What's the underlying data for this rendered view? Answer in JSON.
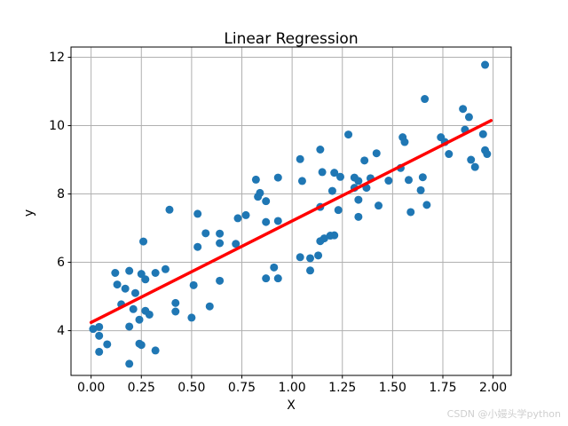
{
  "figure": {
    "title": "Linear Regression",
    "xlabel": "X",
    "ylabel": "y",
    "watermark": "CSDN @小嫚头学python"
  },
  "chart_data": {
    "type": "scatter",
    "title": "Linear Regression",
    "xlabel": "X",
    "ylabel": "y",
    "grid": true,
    "legend": "none",
    "xlim": [
      -0.1,
      2.09
    ],
    "ylim": [
      2.69,
      12.3
    ],
    "xticks": [
      0,
      0.25,
      0.5,
      0.75,
      1.0,
      1.25,
      1.5,
      1.75,
      2.0
    ],
    "xtick_labels": [
      "0.00",
      "0.25",
      "0.50",
      "0.75",
      "1.00",
      "1.25",
      "1.50",
      "1.75",
      "2.00"
    ],
    "yticks": [
      4,
      6,
      8,
      10,
      12
    ],
    "ytick_labels": [
      "4",
      "6",
      "8",
      "10",
      "12"
    ],
    "colors": {
      "scatter": "#1f77b4",
      "line": "#ff0000",
      "grid": "#b0b0b0",
      "spine": "#000000",
      "tick": "#000000",
      "watermark": "#cfcfcf"
    },
    "marker_radius": 4.5,
    "line_width": 3.5,
    "series": [
      {
        "name": "data-points",
        "type": "scatter",
        "color": "#1f77b4",
        "points": [
          [
            0.01,
            4.05
          ],
          [
            0.04,
            4.11
          ],
          [
            0.04,
            3.85
          ],
          [
            0.04,
            3.38
          ],
          [
            0.08,
            3.6
          ],
          [
            0.12,
            5.69
          ],
          [
            0.13,
            5.35
          ],
          [
            0.15,
            4.77
          ],
          [
            0.17,
            5.23
          ],
          [
            0.19,
            3.03
          ],
          [
            0.19,
            5.75
          ],
          [
            0.19,
            4.12
          ],
          [
            0.21,
            4.63
          ],
          [
            0.22,
            5.1
          ],
          [
            0.24,
            3.62
          ],
          [
            0.25,
            3.58
          ],
          [
            0.24,
            4.32
          ],
          [
            0.25,
            5.66
          ],
          [
            0.26,
            6.61
          ],
          [
            0.27,
            4.58
          ],
          [
            0.27,
            5.5
          ],
          [
            0.29,
            4.47
          ],
          [
            0.32,
            5.69
          ],
          [
            0.32,
            3.42
          ],
          [
            0.37,
            5.8
          ],
          [
            0.39,
            7.54
          ],
          [
            0.42,
            4.81
          ],
          [
            0.42,
            4.56
          ],
          [
            0.5,
            4.38
          ],
          [
            0.51,
            5.33
          ],
          [
            0.53,
            7.42
          ],
          [
            0.53,
            6.45
          ],
          [
            0.57,
            6.85
          ],
          [
            0.59,
            4.71
          ],
          [
            0.64,
            6.84
          ],
          [
            0.64,
            6.56
          ],
          [
            0.64,
            5.46
          ],
          [
            0.72,
            6.54
          ],
          [
            0.73,
            7.29
          ],
          [
            0.77,
            7.38
          ],
          [
            0.82,
            8.42
          ],
          [
            0.93,
            8.48
          ],
          [
            0.84,
            8.03
          ],
          [
            0.83,
            7.92
          ],
          [
            0.87,
            7.79
          ],
          [
            0.87,
            7.18
          ],
          [
            0.93,
            7.21
          ],
          [
            0.87,
            5.53
          ],
          [
            0.93,
            5.53
          ],
          [
            0.91,
            5.85
          ],
          [
            1.04,
            6.15
          ],
          [
            1.09,
            6.12
          ],
          [
            1.13,
            6.2
          ],
          [
            1.09,
            5.76
          ],
          [
            1.14,
            6.62
          ],
          [
            1.16,
            6.7
          ],
          [
            1.19,
            6.78
          ],
          [
            1.21,
            6.79
          ],
          [
            1.04,
            9.02
          ],
          [
            1.14,
            9.3
          ],
          [
            1.28,
            9.74
          ],
          [
            1.05,
            8.38
          ],
          [
            1.15,
            8.64
          ],
          [
            1.21,
            8.62
          ],
          [
            1.24,
            8.5
          ],
          [
            1.31,
            8.48
          ],
          [
            1.33,
            8.38
          ],
          [
            1.31,
            8.18
          ],
          [
            1.37,
            8.18
          ],
          [
            1.2,
            8.09
          ],
          [
            1.14,
            7.62
          ],
          [
            1.23,
            7.53
          ],
          [
            1.33,
            7.83
          ],
          [
            1.33,
            7.33
          ],
          [
            1.36,
            8.98
          ],
          [
            1.39,
            8.46
          ],
          [
            1.48,
            8.39
          ],
          [
            1.42,
            9.19
          ],
          [
            1.43,
            7.66
          ],
          [
            1.55,
            9.66
          ],
          [
            1.56,
            9.52
          ],
          [
            1.54,
            8.76
          ],
          [
            1.58,
            8.41
          ],
          [
            1.59,
            7.47
          ],
          [
            1.65,
            8.49
          ],
          [
            1.64,
            8.11
          ],
          [
            1.66,
            10.78
          ],
          [
            1.67,
            7.68
          ],
          [
            1.74,
            9.66
          ],
          [
            1.76,
            9.52
          ],
          [
            1.78,
            9.17
          ],
          [
            1.85,
            10.49
          ],
          [
            1.88,
            10.25
          ],
          [
            1.86,
            9.88
          ],
          [
            1.89,
            9.0
          ],
          [
            1.91,
            8.79
          ],
          [
            1.95,
            9.75
          ],
          [
            1.96,
            11.78
          ],
          [
            1.96,
            9.28
          ],
          [
            1.97,
            9.17
          ]
        ]
      },
      {
        "name": "regression-line",
        "type": "line",
        "color": "#ff0000",
        "points": [
          [
            0.0,
            4.24
          ],
          [
            1.99,
            10.15
          ]
        ]
      }
    ]
  }
}
